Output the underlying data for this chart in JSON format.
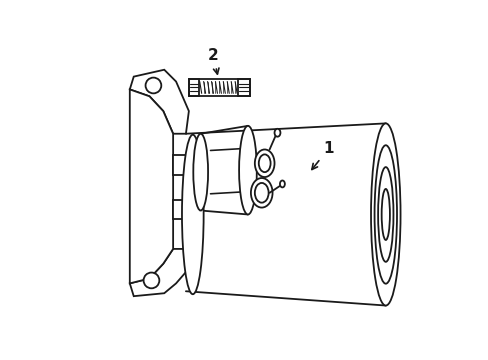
{
  "background_color": "#ffffff",
  "line_color": "#1a1a1a",
  "line_width": 1.3,
  "label1_text": "1",
  "label2_text": "2",
  "figsize": [
    4.89,
    3.6
  ],
  "dpi": 100
}
